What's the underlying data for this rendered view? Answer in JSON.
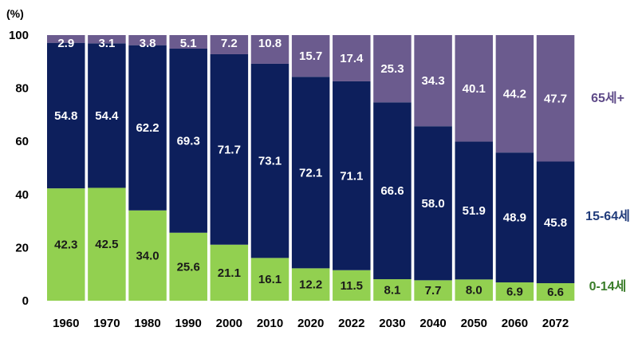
{
  "chart_data": {
    "type": "bar",
    "stacked": true,
    "y_unit_label": "(%)",
    "ylim": [
      0,
      100
    ],
    "yticks": [
      0,
      20,
      40,
      60,
      80,
      100
    ],
    "categories": [
      "1960",
      "1970",
      "1980",
      "1990",
      "2000",
      "2010",
      "2020",
      "2022",
      "2030",
      "2040",
      "2050",
      "2060",
      "2072"
    ],
    "series": [
      {
        "name": "0-14세",
        "color": "#92d050",
        "label_color": "#1a1a1a",
        "name_color": "#3a7d2a",
        "values": [
          42.3,
          42.5,
          34.0,
          25.6,
          21.1,
          16.1,
          12.2,
          11.5,
          8.1,
          7.7,
          8.0,
          6.9,
          6.6
        ]
      },
      {
        "name": "15-64세",
        "color": "#0d1f5c",
        "label_color": "#ffffff",
        "name_color": "#1f3a7a",
        "values": [
          54.8,
          54.4,
          62.2,
          69.3,
          71.7,
          73.1,
          72.1,
          71.1,
          66.6,
          58.0,
          51.9,
          48.9,
          45.8
        ]
      },
      {
        "name": "65세+",
        "color": "#6b5b8e",
        "label_color": "#ffffff",
        "name_color": "#5e4a88",
        "values": [
          2.9,
          3.1,
          3.8,
          5.1,
          7.2,
          10.8,
          15.7,
          17.4,
          25.3,
          34.3,
          40.1,
          44.2,
          47.7
        ]
      }
    ],
    "grid": false,
    "legend": "right, aligned with segments"
  }
}
